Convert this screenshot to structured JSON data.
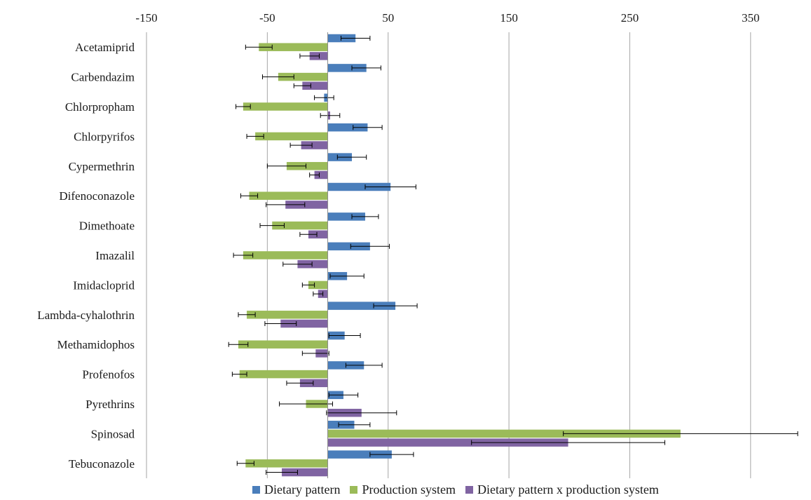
{
  "chart_data": {
    "type": "bar",
    "orientation": "horizontal",
    "title": "",
    "xlabel": "",
    "ylabel": "",
    "xlim": [
      -150,
      400
    ],
    "x_ticks": [
      -150,
      -50,
      50,
      150,
      250,
      350
    ],
    "x_tick_labels": [
      "-150",
      "-50",
      "50",
      "150",
      "250",
      "350"
    ],
    "grid": true,
    "legend_position": "bottom",
    "categories": [
      "Acetamiprid",
      "Carbendazim",
      "Chlorpropham",
      "Chlorpyrifos",
      "Cypermethrin",
      "Difenoconazole",
      "Dimethoate",
      "Imazalil",
      "Imidacloprid",
      "Lambda-cyhalothrin",
      "Methamidophos",
      "Profenofos",
      "Pyrethrins",
      "Spinosad",
      "Tebuconazole"
    ],
    "series": [
      {
        "name": "Dietary pattern",
        "color": "#4a7ebb",
        "values": [
          23,
          32,
          -3,
          33,
          20,
          52,
          31,
          35,
          16,
          56,
          14,
          30,
          13,
          22,
          53
        ],
        "errors": [
          12,
          12,
          8,
          12,
          12,
          21,
          11,
          16,
          14,
          18,
          13,
          15,
          12,
          13,
          18
        ]
      },
      {
        "name": "Production system",
        "color": "#9bbb59",
        "values": [
          -57,
          -41,
          -70,
          -60,
          -34,
          -65,
          -46,
          -70,
          -16,
          -67,
          -74,
          -73,
          -18,
          292,
          -68
        ],
        "errors": [
          11,
          13,
          6,
          7,
          16,
          7,
          10,
          8,
          5,
          7,
          8,
          6,
          22,
          97,
          7
        ],
        "neg_only_error": [
          false,
          false,
          false,
          false,
          false,
          false,
          false,
          false,
          false,
          false,
          false,
          false,
          false,
          false,
          false
        ]
      },
      {
        "name": "Dietary pattern x production system",
        "color": "#8064a2",
        "values": [
          -15,
          -21,
          2,
          -22,
          -11,
          -35,
          -16,
          -25,
          -8,
          -39,
          -10,
          -23,
          28,
          199,
          -38
        ],
        "errors": [
          8,
          7,
          8,
          9,
          4,
          16,
          7,
          12,
          4,
          13,
          11,
          11,
          29,
          80,
          13
        ]
      }
    ]
  }
}
